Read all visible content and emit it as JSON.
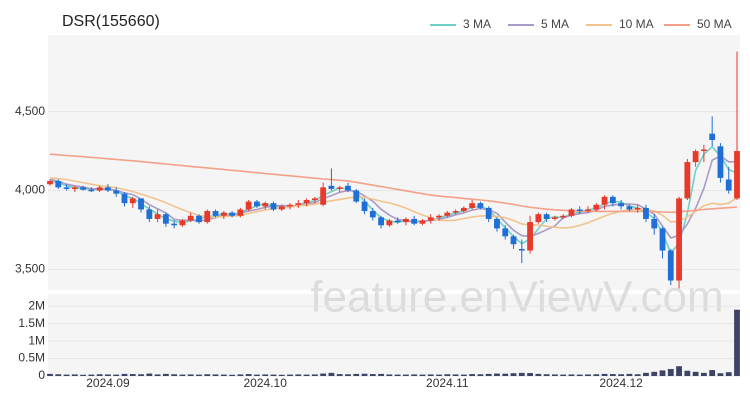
{
  "chart_data": {
    "type": "candlestick",
    "title": "DSR(155660)",
    "watermark": "feature.enViewV.com",
    "up_color": "#e8392a",
    "down_color": "#1f6fd6",
    "categories": [
      null,
      null,
      null,
      null,
      null,
      null,
      null,
      "2024.09",
      null,
      null,
      null,
      null,
      null,
      null,
      null,
      null,
      null,
      null,
      null,
      null,
      null,
      null,
      null,
      null,
      null,
      null,
      "2024.10",
      null,
      null,
      null,
      null,
      null,
      null,
      null,
      null,
      null,
      null,
      null,
      null,
      null,
      null,
      null,
      null,
      null,
      null,
      null,
      null,
      null,
      "2024.11",
      null,
      null,
      null,
      null,
      null,
      null,
      null,
      null,
      null,
      null,
      null,
      null,
      null,
      null,
      null,
      null,
      null,
      null,
      null,
      null,
      "2024.12",
      null,
      null,
      null,
      null,
      null,
      null,
      null,
      null,
      null,
      null,
      null,
      null,
      null,
      null
    ],
    "open": [
      4040,
      4060,
      4020,
      4010,
      4020,
      4005,
      4000,
      4020,
      4000,
      3980,
      3920,
      3950,
      3880,
      3820,
      3850,
      3790,
      3780,
      3810,
      3840,
      3800,
      3870,
      3840,
      3860,
      3840,
      3880,
      3930,
      3900,
      3920,
      3880,
      3900,
      3910,
      3920,
      3940,
      3910,
      4030,
      4010,
      4030,
      4000,
      3930,
      3870,
      3830,
      3780,
      3810,
      3800,
      3820,
      3790,
      3810,
      3830,
      3840,
      3860,
      3870,
      3890,
      3920,
      3890,
      3820,
      3760,
      3710,
      3630,
      3620,
      3800,
      3850,
      3820,
      3830,
      3840,
      3880,
      3870,
      3880,
      3910,
      3960,
      3920,
      3900,
      3880,
      3890,
      3820,
      3760,
      3620,
      3430,
      3950,
      4180,
      4250,
      4360,
      4280,
      4070,
      3950
    ],
    "high": [
      4070,
      4070,
      4040,
      4030,
      4030,
      4020,
      4030,
      4040,
      4020,
      3990,
      3960,
      3950,
      3900,
      3880,
      3860,
      3810,
      3820,
      3860,
      3850,
      3880,
      3880,
      3870,
      3870,
      3890,
      3940,
      3940,
      3930,
      3930,
      3910,
      3920,
      3940,
      3950,
      3960,
      4050,
      4140,
      4030,
      4050,
      4010,
      3950,
      3890,
      3840,
      3820,
      3830,
      3830,
      3840,
      3820,
      3850,
      3850,
      3870,
      3880,
      3900,
      3940,
      3930,
      3900,
      3830,
      3780,
      3720,
      3690,
      3840,
      3860,
      3860,
      3840,
      3850,
      3890,
      3900,
      3900,
      3920,
      3970,
      3970,
      3940,
      3910,
      3910,
      3910,
      3850,
      3770,
      3630,
      3960,
      4200,
      4260,
      4290,
      4470,
      4300,
      4150,
      4880
    ],
    "low": [
      4030,
      4010,
      4000,
      3990,
      4000,
      3990,
      3990,
      3990,
      3960,
      3900,
      3890,
      3860,
      3800,
      3800,
      3770,
      3760,
      3770,
      3800,
      3790,
      3790,
      3830,
      3820,
      3830,
      3830,
      3870,
      3890,
      3880,
      3870,
      3870,
      3880,
      3890,
      3900,
      3920,
      3900,
      4000,
      3990,
      3990,
      3920,
      3850,
      3810,
      3760,
      3770,
      3790,
      3780,
      3780,
      3780,
      3790,
      3810,
      3830,
      3850,
      3860,
      3880,
      3880,
      3800,
      3740,
      3690,
      3630,
      3540,
      3600,
      3790,
      3800,
      3810,
      3820,
      3830,
      3850,
      3860,
      3870,
      3880,
      3900,
      3880,
      3870,
      3860,
      3800,
      3720,
      3570,
      3400,
      3380,
      3940,
      4150,
      4180,
      4280,
      4050,
      3980,
      3940
    ],
    "close": [
      4060,
      4020,
      4010,
      4020,
      4005,
      4000,
      4020,
      4000,
      3980,
      3920,
      3950,
      3880,
      3820,
      3850,
      3790,
      3780,
      3810,
      3840,
      3800,
      3870,
      3840,
      3860,
      3840,
      3880,
      3930,
      3900,
      3920,
      3880,
      3900,
      3910,
      3920,
      3940,
      3950,
      4020,
      4010,
      4020,
      4000,
      3930,
      3870,
      3830,
      3780,
      3810,
      3800,
      3820,
      3790,
      3810,
      3830,
      3840,
      3860,
      3870,
      3890,
      3920,
      3890,
      3820,
      3760,
      3710,
      3660,
      3620,
      3800,
      3850,
      3820,
      3830,
      3840,
      3880,
      3870,
      3880,
      3910,
      3960,
      3920,
      3900,
      3880,
      3890,
      3820,
      3760,
      3620,
      3430,
      3950,
      4180,
      4250,
      4260,
      4320,
      4080,
      4000,
      4250
    ],
    "ylim": [
      3370,
      4985
    ],
    "yticks": [
      {
        "value": 3500,
        "label": "3,500"
      },
      {
        "value": 4000,
        "label": "4,000"
      },
      {
        "value": 4500,
        "label": "4,500"
      }
    ],
    "legend_position": "top-right",
    "series": [
      {
        "name": "3 MA",
        "color": "#6fd1c8",
        "values": [
          4060,
          4050,
          4030,
          4017,
          4012,
          4008,
          4008,
          4007,
          4000,
          3967,
          3950,
          3917,
          3883,
          3850,
          3820,
          3807,
          3793,
          3810,
          3817,
          3837,
          3837,
          3857,
          3847,
          3860,
          3883,
          3903,
          3917,
          3900,
          3900,
          3897,
          3910,
          3923,
          3937,
          3970,
          3993,
          4017,
          4010,
          3983,
          3933,
          3877,
          3827,
          3807,
          3797,
          3810,
          3803,
          3807,
          3810,
          3827,
          3843,
          3857,
          3873,
          3893,
          3900,
          3877,
          3823,
          3763,
          3710,
          3663,
          3693,
          3757,
          3823,
          3833,
          3830,
          3850,
          3863,
          3877,
          3887,
          3917,
          3930,
          3927,
          3900,
          3890,
          3863,
          3823,
          3733,
          3603,
          3667,
          3853,
          4127,
          4230,
          4277,
          4220,
          4133,
          4110
        ]
      },
      {
        "name": "5 MA",
        "color": "#a99ac8",
        "values": [
          4070,
          4060,
          4040,
          4030,
          4023,
          4011,
          4011,
          4009,
          4001,
          3985,
          3974,
          3946,
          3910,
          3884,
          3858,
          3818,
          3810,
          3814,
          3804,
          3818,
          3828,
          3844,
          3842,
          3858,
          3870,
          3880,
          3894,
          3902,
          3906,
          3902,
          3906,
          3914,
          3924,
          3948,
          3968,
          3988,
          4000,
          3996,
          3966,
          3932,
          3882,
          3844,
          3818,
          3808,
          3800,
          3806,
          3810,
          3818,
          3830,
          3846,
          3858,
          3876,
          3886,
          3878,
          3856,
          3800,
          3748,
          3714,
          3710,
          3728,
          3752,
          3776,
          3828,
          3844,
          3854,
          3860,
          3876,
          3900,
          3908,
          3914,
          3914,
          3910,
          3882,
          3850,
          3774,
          3700,
          3716,
          3788,
          3886,
          4014,
          4192,
          4218,
          4182,
          4182
        ]
      },
      {
        "name": "10 MA",
        "color": "#f2c48d",
        "values": [
          4080,
          4075,
          4070,
          4060,
          4050,
          4040,
          4030,
          4025,
          4018,
          4006,
          3993,
          3978,
          3960,
          3943,
          3922,
          3900,
          3879,
          3860,
          3842,
          3834,
          3829,
          3836,
          3838,
          3841,
          3855,
          3866,
          3877,
          3885,
          3891,
          3895,
          3903,
          3907,
          3913,
          3927,
          3935,
          3944,
          3952,
          3960,
          3958,
          3946,
          3932,
          3922,
          3907,
          3889,
          3866,
          3845,
          3827,
          3811,
          3810,
          3812,
          3823,
          3832,
          3839,
          3839,
          3836,
          3828,
          3810,
          3788,
          3783,
          3781,
          3774,
          3767,
          3762,
          3767,
          3779,
          3796,
          3817,
          3838,
          3856,
          3869,
          3877,
          3883,
          3882,
          3870,
          3844,
          3800,
          3806,
          3833,
          3867,
          3904,
          3920,
          3911,
          3920,
          3955
        ]
      },
      {
        "name": "50 MA",
        "color": "#f4a08a",
        "values": [
          4230,
          4226,
          4222,
          4218,
          4214,
          4210,
          4206,
          4201,
          4197,
          4192,
          4188,
          4183,
          4178,
          4173,
          4168,
          4163,
          4158,
          4153,
          4148,
          4143,
          4138,
          4133,
          4128,
          4123,
          4118,
          4113,
          4108,
          4103,
          4098,
          4093,
          4088,
          4083,
          4078,
          4073,
          4069,
          4065,
          4061,
          4052,
          4043,
          4034,
          4025,
          4016,
          4007,
          3998,
          3989,
          3980,
          3971,
          3965,
          3960,
          3955,
          3950,
          3945,
          3940,
          3935,
          3928,
          3920,
          3912,
          3902,
          3894,
          3888,
          3882,
          3878,
          3875,
          3872,
          3870,
          3869,
          3868,
          3868,
          3868,
          3868,
          3868,
          3868,
          3867,
          3866,
          3864,
          3862,
          3865,
          3870,
          3875,
          3880,
          3884,
          3888,
          3891,
          3895
        ]
      }
    ],
    "volume": {
      "color": "#3d4466",
      "values": [
        60000,
        50000,
        40000,
        45000,
        35000,
        40000,
        50000,
        45000,
        40000,
        60000,
        55000,
        50000,
        70000,
        45000,
        60000,
        50000,
        40000,
        45000,
        40000,
        50000,
        45000,
        40000,
        35000,
        45000,
        55000,
        40000,
        45000,
        40000,
        35000,
        40000,
        45000,
        40000,
        45000,
        70000,
        90000,
        55000,
        50000,
        60000,
        65000,
        55000,
        60000,
        45000,
        40000,
        40000,
        45000,
        40000,
        45000,
        40000,
        50000,
        45000,
        40000,
        55000,
        50000,
        60000,
        70000,
        65000,
        80000,
        90000,
        85000,
        60000,
        50000,
        45000,
        40000,
        45000,
        40000,
        45000,
        50000,
        60000,
        55000,
        50000,
        60000,
        50000,
        90000,
        120000,
        160000,
        200000,
        280000,
        150000,
        120000,
        90000,
        170000,
        80000,
        110000,
        1900000
      ],
      "ylim": [
        0,
        2350000
      ],
      "yticks": [
        0,
        {
          "value": 500000,
          "label": "0.5M"
        },
        {
          "value": 1000000,
          "label": "1M"
        },
        {
          "value": 1500000,
          "label": "1.5M"
        },
        {
          "value": 2000000,
          "label": "2M"
        }
      ]
    }
  }
}
